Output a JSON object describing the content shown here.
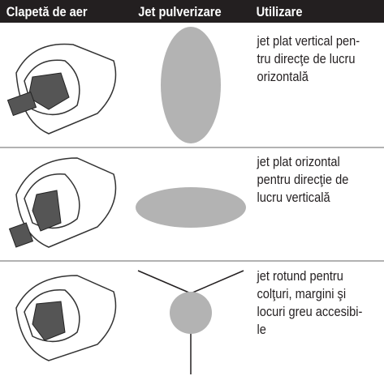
{
  "header": {
    "columns": [
      "Clapetă de aer",
      "Jet pulverizare",
      "Utilizare"
    ]
  },
  "rows": [
    {
      "usage_lines": [
        "jet plat vertical pen-",
        "tru direcţe de lucru",
        "orizontală"
      ]
    },
    {
      "usage_lines": [
        "jet plat orizontal",
        "pentru direcţie de",
        "lucru verticală"
      ]
    },
    {
      "usage_lines": [
        "jet rotund pentru",
        "colţuri, margini şi",
        "locuri greu accesibi-",
        "le"
      ]
    }
  ]
}
